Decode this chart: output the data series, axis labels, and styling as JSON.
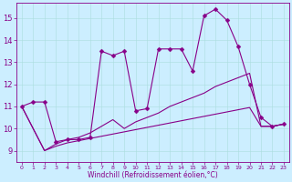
{
  "xlabel": "Windchill (Refroidissement éolien,°C)",
  "bg_color": "#cceeff",
  "grid_color": "#aadddd",
  "line_color": "#880088",
  "xlim": [
    -0.5,
    23.5
  ],
  "ylim": [
    8.5,
    15.7
  ],
  "xticks": [
    0,
    1,
    2,
    3,
    4,
    5,
    6,
    7,
    8,
    9,
    10,
    11,
    12,
    13,
    14,
    15,
    16,
    17,
    18,
    19,
    20,
    21,
    22,
    23
  ],
  "yticks": [
    9,
    10,
    11,
    12,
    13,
    14,
    15
  ],
  "series": [
    {
      "x": [
        0,
        1,
        2,
        3,
        4,
        5,
        6,
        7,
        8,
        9,
        10,
        11,
        12,
        13,
        14,
        15,
        16,
        17,
        18,
        19,
        20,
        21,
        22,
        23
      ],
      "y": [
        11.0,
        11.2,
        11.2,
        9.4,
        9.5,
        9.5,
        9.6,
        13.5,
        13.3,
        13.5,
        10.8,
        10.9,
        13.6,
        13.6,
        13.6,
        12.6,
        15.1,
        15.4,
        14.9,
        13.7,
        12.0,
        10.5,
        10.1,
        10.2
      ],
      "marker": true
    },
    {
      "x": [
        0,
        2,
        3,
        4,
        5,
        6,
        7,
        8,
        9,
        10,
        11,
        12,
        13,
        14,
        15,
        16,
        17,
        18,
        19,
        20,
        21,
        22,
        23
      ],
      "y": [
        11.0,
        9.0,
        9.2,
        9.35,
        9.45,
        9.55,
        9.65,
        9.75,
        9.85,
        9.95,
        10.05,
        10.15,
        10.25,
        10.35,
        10.45,
        10.55,
        10.65,
        10.75,
        10.85,
        10.95,
        10.1,
        10.1,
        10.2
      ],
      "marker": false
    },
    {
      "x": [
        0,
        2,
        3,
        4,
        5,
        6,
        7,
        8,
        9,
        10,
        11,
        12,
        13,
        14,
        15,
        16,
        17,
        18,
        19,
        20,
        21,
        22,
        23
      ],
      "y": [
        11.0,
        9.0,
        9.3,
        9.5,
        9.6,
        9.8,
        10.1,
        10.4,
        10.0,
        10.3,
        10.5,
        10.7,
        11.0,
        11.2,
        11.4,
        11.6,
        11.9,
        12.1,
        12.3,
        12.5,
        10.1,
        10.1,
        10.2
      ],
      "marker": false
    }
  ],
  "xlabel_fontsize": 5.5,
  "tick_fontsize": 5.5
}
